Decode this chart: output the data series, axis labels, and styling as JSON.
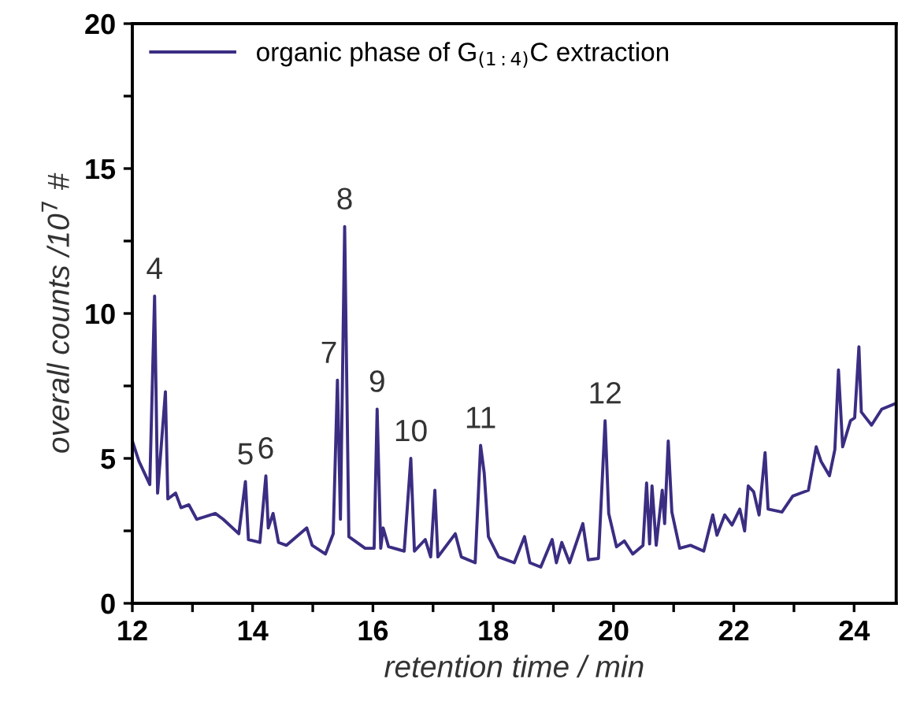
{
  "chart_data": {
    "type": "line",
    "xlabel": "retention time / min",
    "ylabel": "overall counts /10$^{7}$ #",
    "xlim": [
      12,
      24.7
    ],
    "ylim": [
      0,
      20
    ],
    "xticks": [
      12,
      {
        "value": 13,
        "label": null
      },
      14,
      {
        "value": 15,
        "label": null
      },
      16,
      {
        "value": 17,
        "label": null
      },
      18,
      {
        "value": 19,
        "label": null
      },
      20,
      {
        "value": 21,
        "label": null
      },
      22,
      {
        "value": 23,
        "label": null
      },
      24
    ],
    "yticks": [
      0,
      {
        "value": 2.5,
        "label": null
      },
      5,
      {
        "value": 7.5,
        "label": null
      },
      10,
      {
        "value": 12.5,
        "label": null
      },
      15,
      {
        "value": 17.5,
        "label": null
      },
      20
    ],
    "grid": false,
    "legend": "top left",
    "marker": "none",
    "line_style": "solid",
    "series": [
      {
        "name": "organic phase of G$_{(1:4)}$C extraction",
        "color": "#3b2d82",
        "x": [
          12.0,
          12.11,
          12.29,
          12.37,
          12.42,
          12.55,
          12.59,
          12.72,
          12.81,
          12.94,
          13.07,
          13.38,
          13.51,
          13.77,
          13.88,
          13.93,
          14.12,
          14.22,
          14.26,
          14.34,
          14.43,
          14.56,
          14.9,
          14.99,
          15.21,
          15.34,
          15.41,
          15.46,
          15.53,
          15.6,
          15.87,
          16.02,
          16.07,
          16.13,
          16.17,
          16.26,
          16.52,
          16.63,
          16.69,
          16.87,
          16.96,
          17.03,
          17.08,
          17.37,
          17.47,
          17.7,
          17.79,
          17.85,
          17.92,
          18.09,
          18.35,
          18.52,
          18.61,
          18.79,
          18.98,
          19.05,
          19.14,
          19.27,
          19.49,
          19.58,
          19.75,
          19.86,
          19.92,
          20.05,
          20.18,
          20.32,
          20.49,
          20.55,
          20.6,
          20.64,
          20.71,
          20.81,
          20.85,
          20.91,
          20.97,
          21.1,
          21.28,
          21.5,
          21.65,
          21.72,
          21.85,
          21.97,
          22.1,
          22.18,
          22.24,
          22.33,
          22.42,
          22.52,
          22.57,
          22.8,
          22.98,
          23.24,
          23.37,
          23.45,
          23.59,
          23.68,
          23.74,
          23.81,
          23.94,
          24.01,
          24.08,
          24.12,
          24.29,
          24.46,
          24.7
        ],
        "values": [
          5.6,
          4.9,
          4.1,
          10.6,
          3.8,
          7.3,
          3.6,
          3.8,
          3.3,
          3.4,
          2.9,
          3.1,
          2.9,
          2.4,
          4.2,
          2.2,
          2.1,
          4.4,
          2.6,
          3.1,
          2.1,
          2.0,
          2.6,
          2.0,
          1.7,
          2.4,
          7.7,
          2.9,
          13.0,
          2.3,
          1.9,
          1.9,
          6.7,
          1.9,
          2.6,
          1.95,
          1.8,
          5.0,
          1.8,
          2.2,
          1.6,
          3.9,
          1.6,
          2.4,
          1.6,
          1.4,
          5.45,
          4.5,
          2.3,
          1.6,
          1.4,
          2.3,
          1.4,
          1.25,
          2.2,
          1.4,
          2.1,
          1.4,
          2.75,
          1.5,
          1.55,
          6.3,
          3.1,
          1.95,
          2.15,
          1.7,
          2.0,
          4.15,
          2.05,
          4.05,
          2.0,
          3.9,
          2.75,
          5.6,
          3.15,
          1.9,
          2.0,
          1.8,
          3.05,
          2.35,
          3.05,
          2.7,
          3.25,
          2.5,
          4.05,
          3.85,
          3.05,
          5.2,
          3.25,
          3.15,
          3.7,
          3.9,
          5.4,
          4.9,
          4.4,
          5.3,
          8.05,
          5.4,
          6.3,
          6.4,
          8.85,
          6.6,
          6.15,
          6.7,
          6.9
        ]
      }
    ],
    "annotations": [
      {
        "text": "4",
        "x": 12.37,
        "y": 10.6
      },
      {
        "text": "5",
        "x": 13.88,
        "y": 4.2
      },
      {
        "text": "6",
        "x": 14.22,
        "y": 4.4
      },
      {
        "text": "7",
        "x": 15.41,
        "y": 7.7
      },
      {
        "text": "8",
        "x": 15.53,
        "y": 13.0
      },
      {
        "text": "9",
        "x": 16.07,
        "y": 6.7
      },
      {
        "text": "10",
        "x": 16.63,
        "y": 5.0
      },
      {
        "text": "11",
        "x": 17.79,
        "y": 5.45
      },
      {
        "text": "12",
        "x": 19.86,
        "y": 6.3
      }
    ]
  }
}
